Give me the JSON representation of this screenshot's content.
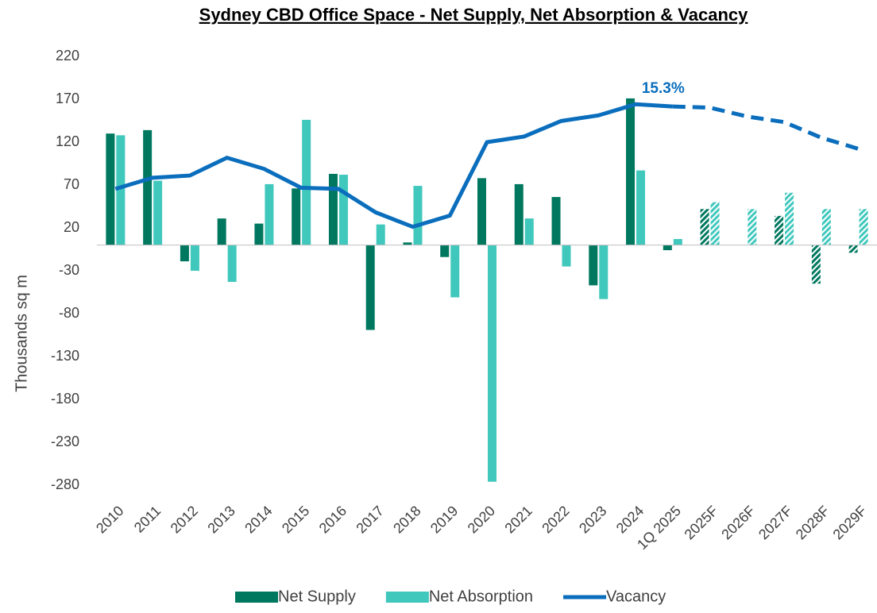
{
  "chart_data": {
    "type": "bar-line",
    "title": "Sydney CBD Office Space - Net Supply, Net Absorption & Vacancy",
    "y_label": "Thousands sq m",
    "categories": [
      "2010",
      "2011",
      "2012",
      "2013",
      "2014",
      "2015",
      "2016",
      "2017",
      "2018",
      "2019",
      "2020",
      "2021",
      "2022",
      "2023",
      "2024",
      "1Q 2025",
      "2025F",
      "2026F",
      "2027F",
      "2028F",
      "2029F"
    ],
    "series": [
      {
        "name": "Net Supply",
        "type": "bar",
        "color": "#00785f",
        "values": [
          130,
          134,
          -19,
          31,
          25,
          66,
          83,
          -99,
          3,
          -14,
          78,
          71,
          56,
          -47,
          171,
          -6,
          42,
          0,
          34,
          -45,
          -9
        ]
      },
      {
        "name": "Net Absorption",
        "type": "bar",
        "color": "#40c8bd",
        "values": [
          128,
          75,
          -30,
          -43,
          71,
          146,
          82,
          24,
          69,
          -61,
          -276,
          31,
          -25,
          -63,
          87,
          7,
          50,
          42,
          61,
          42,
          42
        ]
      },
      {
        "name": "Vacancy",
        "type": "line",
        "axis": "y2",
        "color": "#0a6ebd",
        "values": [
          7.9,
          8.9,
          9.1,
          10.7,
          9.7,
          8.0,
          7.9,
          5.8,
          4.5,
          5.5,
          12.1,
          12.6,
          14.0,
          14.5,
          15.5,
          15.3,
          15.2,
          14.4,
          13.9,
          12.5,
          11.5
        ],
        "value_labels": [
          null,
          null,
          null,
          null,
          null,
          null,
          null,
          null,
          null,
          null,
          null,
          null,
          null,
          null,
          null,
          "15.3%",
          null,
          null,
          null,
          null,
          null
        ]
      }
    ],
    "ylim": [
      -280,
      220
    ],
    "yticks": [
      -280,
      -230,
      -180,
      -130,
      -80,
      -30,
      20,
      70,
      120,
      170,
      220
    ],
    "y2lim": [
      -18.7,
      19.8
    ],
    "grid": false,
    "legend": "bottom"
  }
}
